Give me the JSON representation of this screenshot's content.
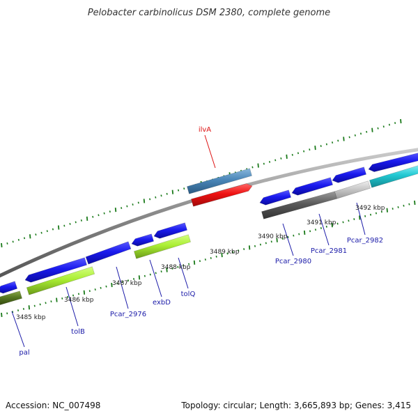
{
  "title": "Pelobacter carbinolicus DSM 2380, complete genome",
  "footer": {
    "accession": "Accession: NC_007498",
    "summary": "Topology: circular; Length: 3,665,893 bp; Genes: 3,415"
  },
  "colors": {
    "backbone": "#8a8a8a",
    "tick": "#1a7a1a",
    "gene_blue": "#1a1aee",
    "gene_red": "#ee1111",
    "gene_steelblue": "#4a86b8",
    "gene_lime": "#aaee33",
    "gene_olive": "#557722",
    "gene_darkgray": "#5a5a5a",
    "gene_lightgray": "#c8c8c8",
    "gene_cyan": "#22c8d2",
    "label_blue": "#1a1aa8",
    "label_red": "#dd1111"
  },
  "kbp_labels": [
    "3485 kbp",
    "3486 kbp",
    "3487 kbp",
    "3488 kbp",
    "3489 kbp",
    "3490 kbp",
    "3491 kbp",
    "3492 kbp"
  ],
  "gene_labels": [
    "ilvA",
    "pal",
    "tolB",
    "Pcar_2976",
    "exbD",
    "tolQ",
    "Pcar_2980",
    "Pcar_2981",
    "Pcar_2982"
  ]
}
